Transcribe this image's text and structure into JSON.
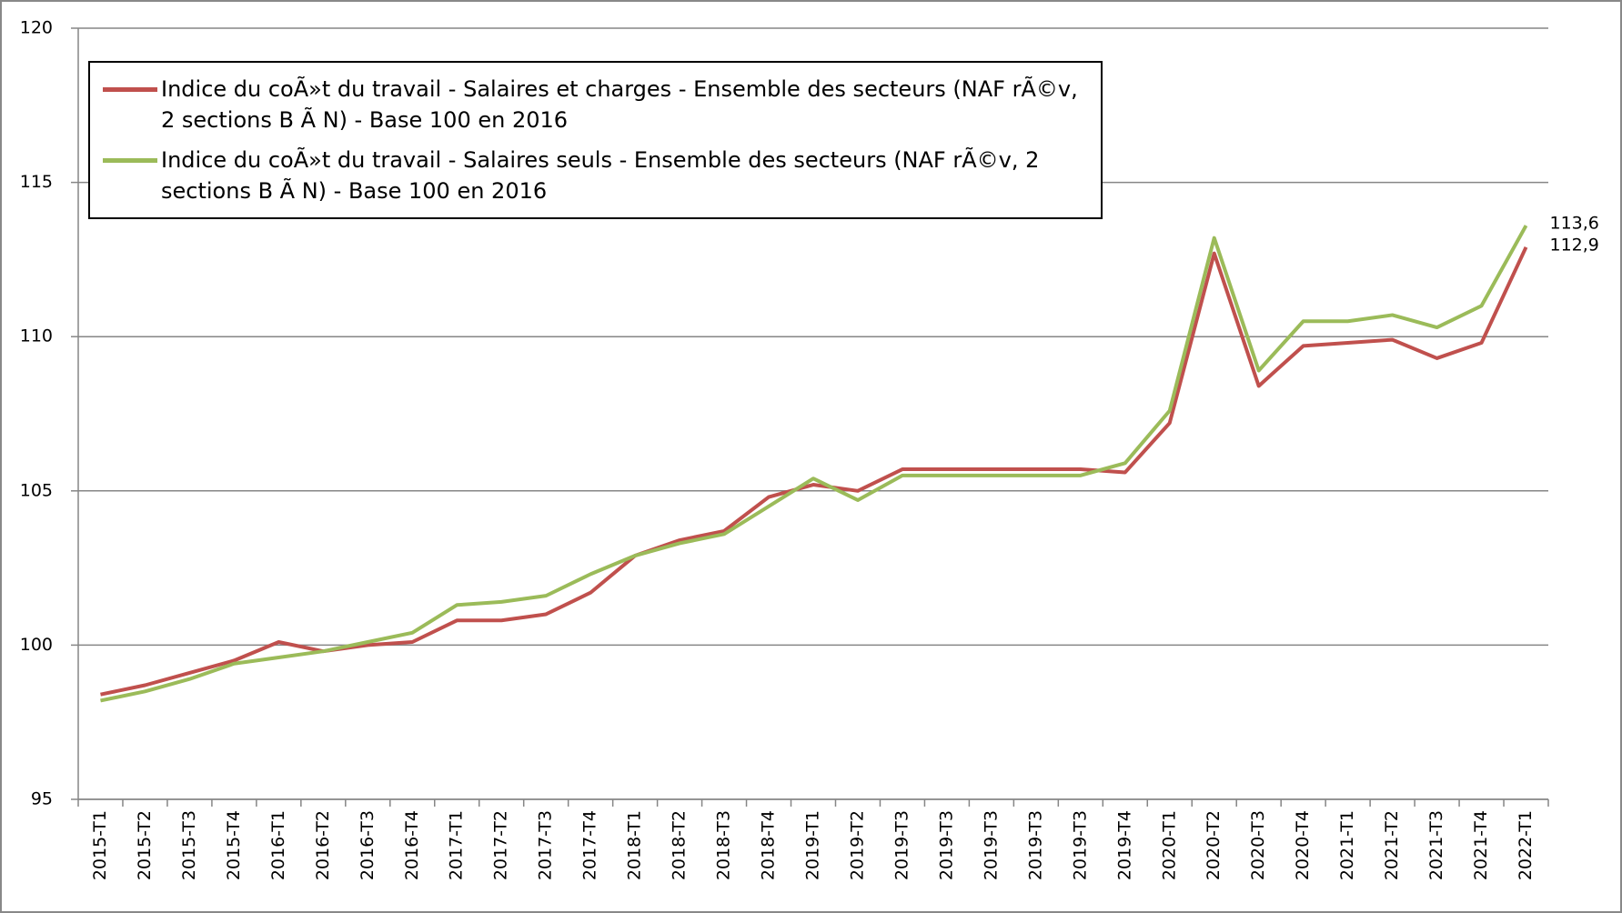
{
  "chart_data": {
    "type": "line",
    "categories": [
      "2015-T1",
      "2015-T2",
      "2015-T3",
      "2015-T4",
      "2016-T1",
      "2016-T2",
      "2016-T3",
      "2016-T4",
      "2017-T1",
      "2017-T2",
      "2017-T3",
      "2017-T4",
      "2018-T1",
      "2018-T2",
      "2018-T3",
      "2018-T4",
      "2019-T1",
      "2019-T2",
      "2019-T3",
      "2019-T3",
      "2019-T3",
      "2019-T3",
      "2019-T3",
      "2019-T4",
      "2020-T1",
      "2020-T2",
      "2020-T3",
      "2020-T4",
      "2021-T1",
      "2021-T2",
      "2021-T3",
      "2021-T4",
      "2022-T1"
    ],
    "series": [
      {
        "name": "Indice du coÃ»t du travail - Salaires et charges - Ensemble des secteurs (NAF rÃ©v, 2 sections B Ã  N) - Base 100 en 2016",
        "color": "#c0504d",
        "values": [
          98.4,
          98.7,
          99.1,
          99.5,
          100.1,
          99.8,
          100.0,
          100.1,
          100.8,
          100.8,
          101.0,
          101.7,
          102.9,
          103.4,
          103.7,
          104.8,
          105.2,
          105.0,
          105.7,
          105.7,
          105.7,
          105.7,
          105.7,
          105.6,
          107.2,
          112.7,
          108.4,
          109.7,
          109.8,
          109.9,
          109.3,
          109.8,
          112.9
        ],
        "value_labels": [
          null,
          null,
          null,
          null,
          null,
          null,
          null,
          null,
          null,
          null,
          null,
          null,
          null,
          null,
          null,
          null,
          null,
          null,
          null,
          null,
          null,
          null,
          null,
          null,
          null,
          null,
          null,
          null,
          null,
          null,
          null,
          null,
          "112,9"
        ]
      },
      {
        "name": "Indice du coÃ»t du travail - Salaires seuls - Ensemble des secteurs (NAF rÃ©v, 2 sections B Ã  N) - Base 100 en 2016",
        "color": "#9bbb59",
        "values": [
          98.2,
          98.5,
          98.9,
          99.4,
          99.6,
          99.8,
          100.1,
          100.4,
          101.3,
          101.4,
          101.6,
          102.3,
          102.9,
          103.3,
          103.6,
          104.5,
          105.4,
          104.7,
          105.5,
          105.5,
          105.5,
          105.5,
          105.5,
          105.9,
          107.6,
          113.2,
          108.9,
          110.5,
          110.5,
          110.7,
          110.3,
          111.0,
          113.6
        ],
        "value_labels": [
          null,
          null,
          null,
          null,
          null,
          null,
          null,
          null,
          null,
          null,
          null,
          null,
          null,
          null,
          null,
          null,
          null,
          null,
          null,
          null,
          null,
          null,
          null,
          null,
          null,
          null,
          null,
          null,
          null,
          null,
          null,
          null,
          "113,6"
        ]
      }
    ],
    "ylim": [
      95,
      120
    ],
    "yticks": [
      95,
      100,
      105,
      110,
      115,
      120
    ],
    "grid": true,
    "legend": "top-left"
  }
}
